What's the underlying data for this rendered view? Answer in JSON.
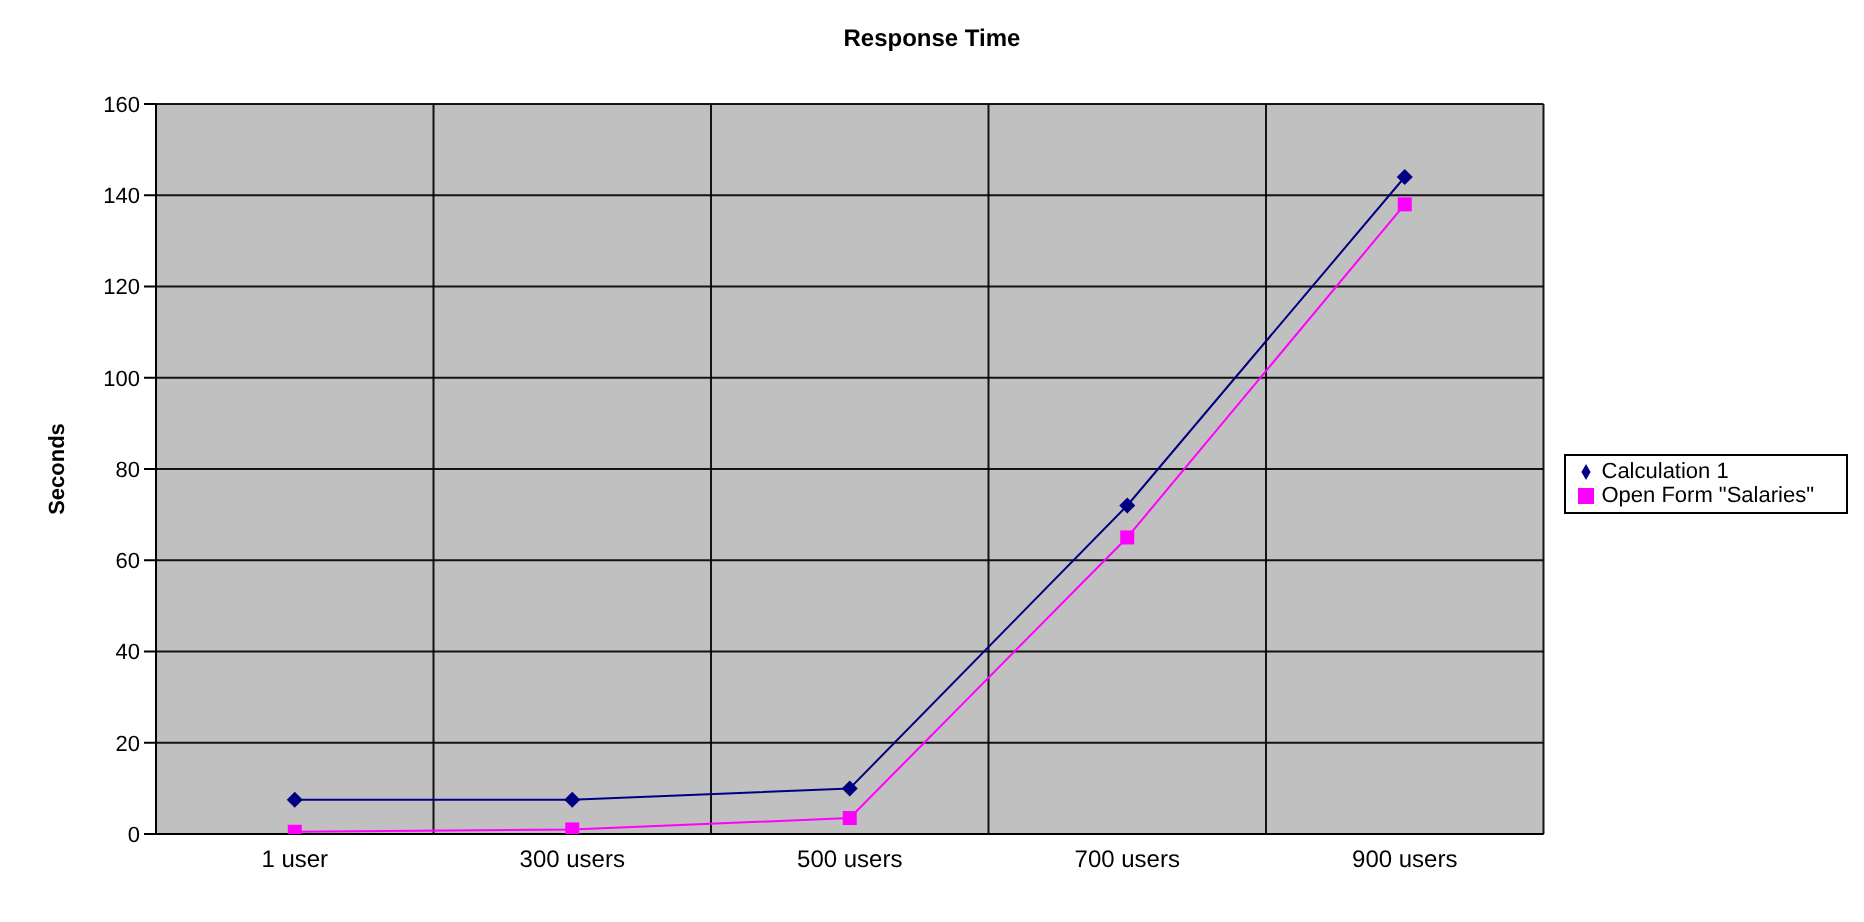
{
  "chart_data": {
    "type": "line",
    "title": "Response Time",
    "ylabel": "Seconds",
    "categories": [
      "1 user",
      "300 users",
      "500 users",
      "700 users",
      "900 users"
    ],
    "series": [
      {
        "name": "Calculation 1",
        "color": "#000080",
        "marker": "diamond",
        "values": [
          7.5,
          7.5,
          10,
          72,
          144
        ]
      },
      {
        "name": "Open Form \"Salaries\"",
        "color": "#ff00ff",
        "marker": "square",
        "values": [
          0.5,
          1,
          3.5,
          65,
          138
        ]
      }
    ],
    "ylim": [
      0,
      160
    ],
    "yticks": [
      0,
      20,
      40,
      60,
      80,
      100,
      120,
      140,
      160
    ],
    "grid": true,
    "legend": "right"
  }
}
